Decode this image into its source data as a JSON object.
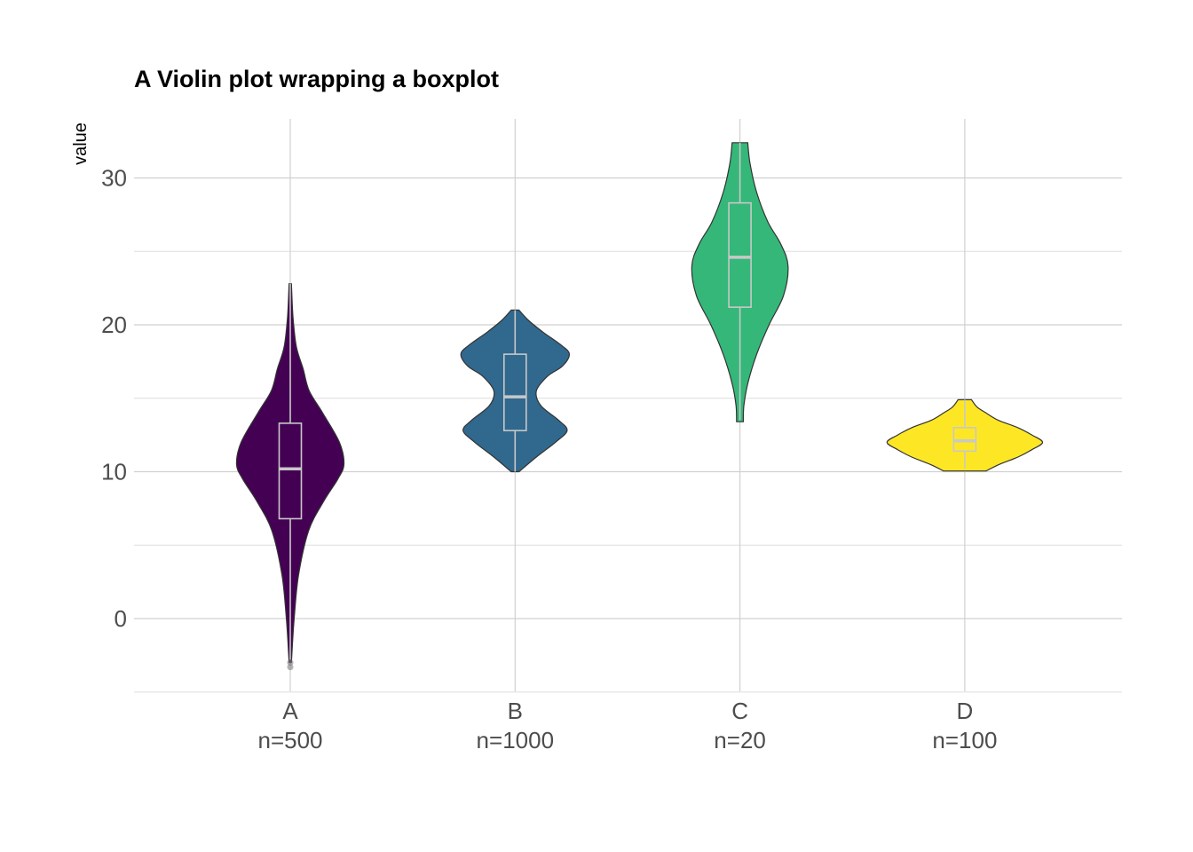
{
  "chart_data": {
    "type": "violin",
    "title": "A Violin plot wrapping a boxplot",
    "xlabel": "",
    "ylabel": "value",
    "ylim": [
      -5,
      34
    ],
    "y_ticks": [
      0,
      10,
      20,
      30
    ],
    "grid": true,
    "legend": "none",
    "categories": [
      {
        "name": "A",
        "label": "n=500",
        "color": "#440154",
        "box": {
          "whisker_low": -2.8,
          "q1": 6.8,
          "median": 10.2,
          "q3": 13.3,
          "whisker_high": 22.8
        },
        "outliers": [
          -3.0,
          -3.3
        ],
        "density_y": [
          -3,
          0,
          3,
          6,
          8,
          9.5,
          10.5,
          12,
          14,
          15.5,
          17,
          18.5,
          20.5,
          22.8
        ],
        "density_w": [
          0.02,
          0.07,
          0.15,
          0.33,
          0.6,
          0.85,
          0.96,
          0.88,
          0.58,
          0.34,
          0.23,
          0.11,
          0.05,
          0.02
        ]
      },
      {
        "name": "B",
        "label": "n=1000",
        "color": "#31688e",
        "box": {
          "whisker_low": 10.0,
          "q1": 12.8,
          "median": 15.1,
          "q3": 18.0,
          "whisker_high": 21.0
        },
        "outliers": [],
        "density_y": [
          10,
          11,
          12,
          12.8,
          13.5,
          14.5,
          15.5,
          16.5,
          17.2,
          18,
          18.6,
          19.5,
          20.3,
          21
        ],
        "density_w": [
          0.07,
          0.38,
          0.72,
          0.93,
          0.78,
          0.46,
          0.38,
          0.58,
          0.85,
          0.97,
          0.83,
          0.5,
          0.24,
          0.07
        ]
      },
      {
        "name": "C",
        "label": "n=20",
        "color": "#35b779",
        "box": {
          "whisker_low": 13.5,
          "q1": 21.2,
          "median": 24.6,
          "q3": 28.3,
          "whisker_high": 32.4
        },
        "outliers": [],
        "density_y": [
          13.4,
          14.5,
          16,
          18,
          20,
          22,
          24,
          25.5,
          27,
          29,
          31,
          32.4
        ],
        "density_w": [
          0.06,
          0.07,
          0.14,
          0.3,
          0.52,
          0.78,
          0.86,
          0.73,
          0.5,
          0.3,
          0.18,
          0.14
        ]
      },
      {
        "name": "D",
        "label": "n=100",
        "color": "#fde725",
        "box": {
          "whisker_low": 10.2,
          "q1": 11.4,
          "median": 12.1,
          "q3": 13.0,
          "whisker_high": 14.9
        },
        "outliers": [],
        "density_y": [
          10.05,
          10.5,
          11,
          11.5,
          12,
          12.5,
          13,
          13.5,
          14,
          14.4,
          14.9
        ],
        "density_w": [
          0.38,
          0.62,
          0.95,
          1.2,
          1.39,
          1.2,
          0.95,
          0.6,
          0.38,
          0.22,
          0.12
        ]
      }
    ]
  }
}
